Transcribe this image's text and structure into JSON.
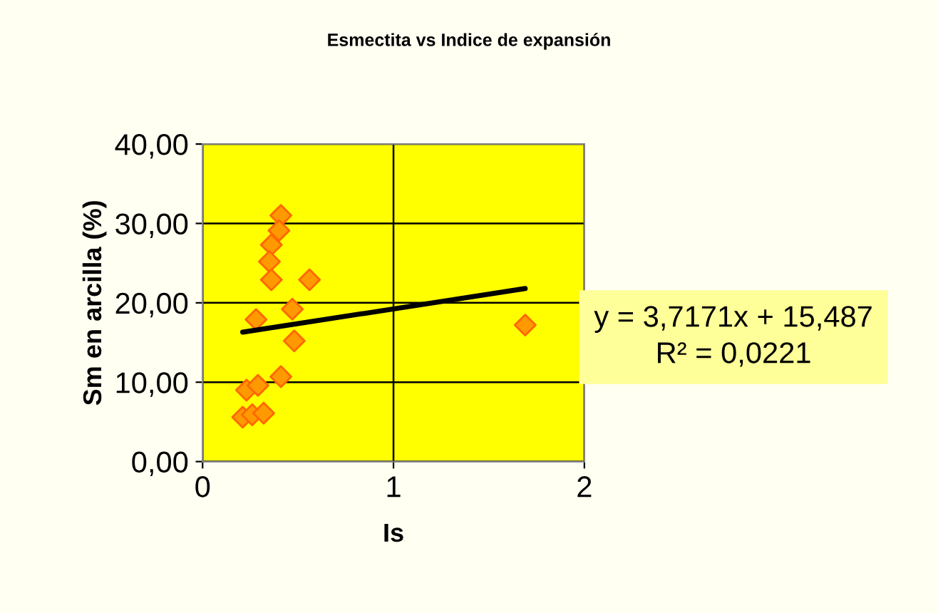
{
  "chart_data": {
    "type": "scatter",
    "title": "Esmectita vs Indice de expansión",
    "xlabel": "Is",
    "ylabel": "Sm en arcilla (%)",
    "xlim": [
      0,
      2
    ],
    "xticks": [
      0,
      1,
      2
    ],
    "ylim": [
      0,
      40
    ],
    "yticks": [
      {
        "value": 0,
        "label": "0,00"
      },
      {
        "value": 10,
        "label": "10,00"
      },
      {
        "value": 20,
        "label": "20,00"
      },
      {
        "value": 30,
        "label": "30,00"
      },
      {
        "value": 40,
        "label": "40,00"
      }
    ],
    "grid": true,
    "marker": "diamond",
    "series": [
      {
        "color": "#ff9900",
        "x": [
          0.41,
          0.4,
          0.36,
          0.35,
          0.36,
          0.56,
          0.28,
          0.47,
          0.48,
          1.69,
          0.41,
          0.23,
          0.29,
          0.21,
          0.26,
          0.32
        ],
        "values": [
          31.0,
          29.1,
          27.3,
          25.2,
          22.9,
          22.9,
          17.9,
          19.2,
          15.2,
          17.2,
          10.7,
          9.0,
          9.6,
          5.6,
          5.9,
          6.1
        ]
      },
      {
        "type": "line",
        "color": "#000000",
        "marker": "none",
        "x": [
          0.21,
          1.69
        ],
        "values": [
          16.3,
          21.8
        ]
      }
    ],
    "annotations": [
      "y = 3,7171x + 15,487",
      "R² = 0,0221"
    ]
  }
}
